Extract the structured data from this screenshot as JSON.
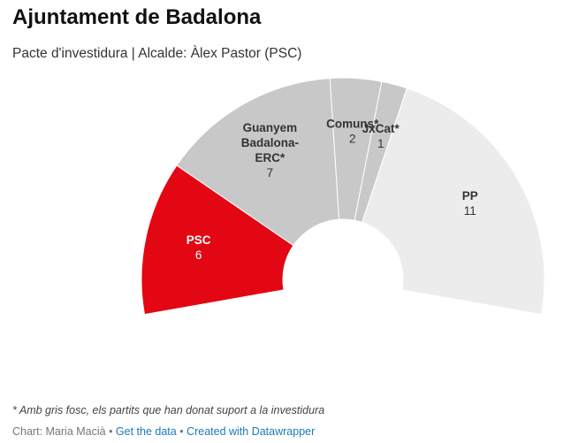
{
  "title": "Ajuntament de Badalona",
  "subtitle": "Pacte d'investidura | Alcalde: Àlex Pastor (PSC)",
  "note": "* Amb gris fosc, els partits que han donat suport a la investidura",
  "footer": {
    "credit": "Chart: Maria Macià",
    "separator": " • ",
    "get_data": "Get the data",
    "created_with": "Created with Datawrapper"
  },
  "chart_data": {
    "type": "pie",
    "variant": "half-donut",
    "categories": [
      "PSC",
      "Guanyem Badalona-ERC*",
      "Comuns*",
      "JxCat*",
      "PP"
    ],
    "values": [
      6,
      7,
      2,
      1,
      11
    ],
    "label_lines": [
      [
        "PSC"
      ],
      [
        "Guanyem",
        "Badalona-",
        "ERC*"
      ],
      [
        "Comuns*"
      ],
      [
        "JxCat*"
      ],
      [
        "PP"
      ]
    ],
    "colors": [
      "#e30613",
      "#c8c8c8",
      "#c8c8c8",
      "#c8c8c8",
      "#ececec"
    ],
    "label_colors": [
      "#ffffff",
      "#333333",
      "#333333",
      "#333333",
      "#333333"
    ]
  }
}
